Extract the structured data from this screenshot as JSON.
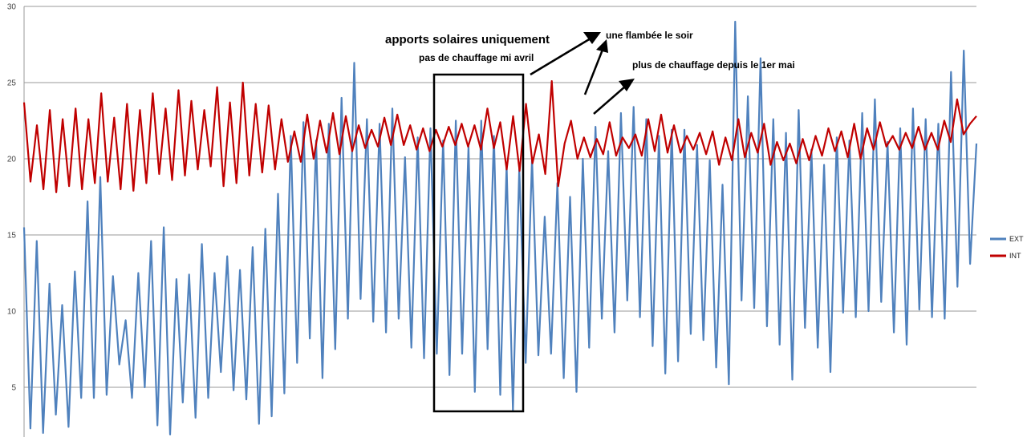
{
  "chart_data": {
    "type": "line",
    "title": "",
    "xlabel": "",
    "ylabel": "",
    "ylim": [
      0,
      30
    ],
    "yticks": [
      5,
      10,
      15,
      20,
      25,
      30
    ],
    "grid": true,
    "legend_position": "right",
    "series": [
      {
        "name": "EXT",
        "color": "#4f81bd",
        "values": [
          15.5,
          2.3,
          14.6,
          2.0,
          11.8,
          3.2,
          10.4,
          2.4,
          12.6,
          4.3,
          17.2,
          4.3,
          18.8,
          4.5,
          12.3,
          6.5,
          9.4,
          4.3,
          12.5,
          5.0,
          14.6,
          2.5,
          15.5,
          1.9,
          12.1,
          4.0,
          12.4,
          3.0,
          14.4,
          4.3,
          12.5,
          6.0,
          13.6,
          4.8,
          12.7,
          4.2,
          14.2,
          2.6,
          15.4,
          3.1,
          17.7,
          4.6,
          21.5,
          6.6,
          22.4,
          8.2,
          21.2,
          5.6,
          22.3,
          7.5,
          24.0,
          9.5,
          26.3,
          10.8,
          22.6,
          9.3,
          22.3,
          8.6,
          23.3,
          9.5,
          20.1,
          7.6,
          21.4,
          6.9,
          22.0,
          7.2,
          21.2,
          5.8,
          22.5,
          7.2,
          20.8,
          4.7,
          22.5,
          7.5,
          21.5,
          4.5,
          19.6,
          3.5,
          19.4,
          6.6,
          20.0,
          7.1,
          16.2,
          7.2,
          18.4,
          5.6,
          17.5,
          4.7,
          20.0,
          7.6,
          22.1,
          9.5,
          20.5,
          8.6,
          23.0,
          10.7,
          23.4,
          9.6,
          22.6,
          7.7,
          21.5,
          5.9,
          21.9,
          6.7,
          21.9,
          8.5,
          20.9,
          8.1,
          19.9,
          6.3,
          18.3,
          5.2,
          29.0,
          10.7,
          24.1,
          10.2,
          26.6,
          9.0,
          22.6,
          7.8,
          21.7,
          5.5,
          23.2,
          8.9,
          20.6,
          7.6,
          19.6,
          6.0,
          21.4,
          9.9,
          21.2,
          9.6,
          23.0,
          10.0,
          23.9,
          10.6,
          21.1,
          8.6,
          22.0,
          7.8,
          23.3,
          10.1,
          22.6,
          9.6,
          22.3,
          9.5,
          25.7,
          11.6,
          27.1,
          13.1,
          21.0
        ]
      },
      {
        "name": "INT",
        "color": "#c00000",
        "values": [
          23.7,
          18.5,
          22.2,
          18.0,
          23.2,
          17.8,
          22.6,
          18.2,
          23.3,
          18.0,
          22.6,
          18.4,
          24.3,
          18.5,
          22.7,
          18.0,
          23.6,
          17.9,
          23.2,
          18.4,
          24.3,
          19.0,
          23.3,
          18.6,
          24.5,
          18.9,
          23.8,
          19.3,
          23.2,
          19.5,
          24.7,
          18.2,
          23.7,
          18.4,
          25.0,
          18.9,
          23.6,
          19.1,
          23.5,
          19.3,
          22.6,
          19.8,
          21.8,
          19.8,
          22.9,
          20.0,
          22.5,
          20.4,
          23.0,
          20.3,
          22.8,
          20.5,
          22.2,
          20.7,
          21.9,
          20.8,
          22.7,
          20.9,
          22.9,
          20.9,
          22.2,
          20.6,
          22.0,
          20.5,
          21.9,
          20.8,
          22.1,
          20.9,
          22.3,
          20.8,
          22.2,
          20.6,
          23.3,
          20.7,
          22.4,
          19.3,
          22.8,
          19.2,
          23.6,
          19.7,
          21.6,
          19.0,
          25.1,
          18.2,
          21.0,
          22.5,
          20.0,
          21.4,
          20.1,
          21.3,
          20.3,
          22.4,
          20.2,
          21.4,
          20.7,
          21.6,
          20.2,
          22.6,
          20.5,
          22.9,
          20.4,
          22.2,
          20.4,
          21.5,
          20.6,
          21.7,
          20.3,
          21.8,
          19.6,
          21.4,
          19.9,
          22.6,
          20.1,
          21.7,
          20.4,
          22.3,
          19.6,
          21.1,
          19.9,
          21.0,
          19.7,
          21.3,
          19.9,
          21.5,
          20.2,
          22.0,
          20.5,
          21.8,
          20.1,
          22.3,
          20.0,
          22.0,
          20.6,
          22.4,
          20.8,
          21.5,
          20.6,
          21.7,
          20.7,
          22.1,
          20.6,
          21.7,
          20.6,
          22.5,
          21.1,
          23.9,
          21.6,
          22.3,
          22.8
        ]
      }
    ],
    "annotations": [
      {
        "text": "apports solaires uniquement"
      },
      {
        "text": "pas de chauffage mi avril"
      },
      {
        "text": "une flambée le soir"
      },
      {
        "text": "plus de chauffage depuis le 1er mai"
      }
    ]
  }
}
